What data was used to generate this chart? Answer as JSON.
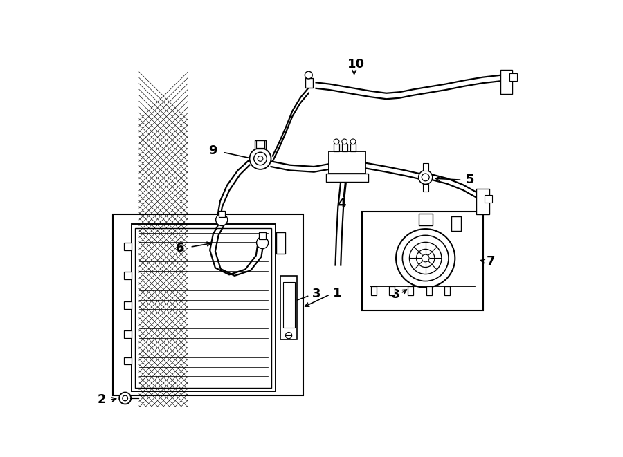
{
  "bg_color": "#ffffff",
  "line_color": "#000000",
  "figsize": [
    9.0,
    6.61
  ],
  "dpi": 100,
  "label_fontsize": 13,
  "line_width": 1.6
}
